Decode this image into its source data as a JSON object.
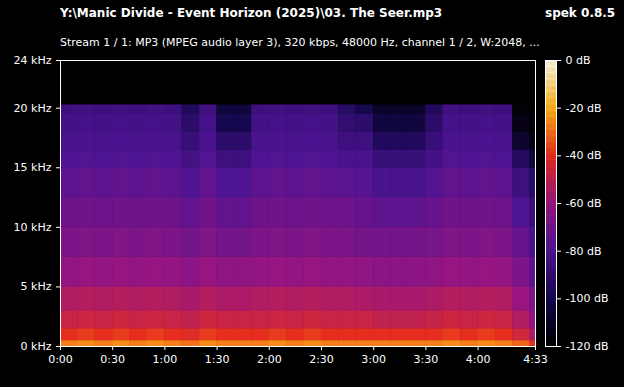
{
  "chart_data": {
    "type": "heatmap",
    "title": "Y:\\Manic Divide - Event Horizon (2025)\\03. The Seer.mp3",
    "subtitle": "Stream 1 / 1: MP3 (MPEG audio layer 3), 320 kbps, 48000 Hz, channel 1 / 2, W:2048, ...",
    "annotation": "spek 0.8.5",
    "xlim": [
      0,
      273
    ],
    "xticks": [
      {
        "value": 0,
        "label": "0:00"
      },
      {
        "value": 30,
        "label": "0:30"
      },
      {
        "value": 60,
        "label": "1:00"
      },
      {
        "value": 90,
        "label": "1:30"
      },
      {
        "value": 120,
        "label": "2:00"
      },
      {
        "value": 150,
        "label": "2:30"
      },
      {
        "value": 180,
        "label": "3:00"
      },
      {
        "value": 210,
        "label": "3:30"
      },
      {
        "value": 240,
        "label": "4:00"
      },
      {
        "value": 273,
        "label": "4:33"
      }
    ],
    "ylim": [
      0,
      24
    ],
    "yticks": [
      {
        "value": 0,
        "label": "0 kHz"
      },
      {
        "value": 5,
        "label": "5 kHz"
      },
      {
        "value": 10,
        "label": "10 kHz"
      },
      {
        "value": 15,
        "label": "15 kHz"
      },
      {
        "value": 20,
        "label": "20 kHz"
      },
      {
        "value": 24,
        "label": "24 kHz"
      }
    ],
    "time_bins": [
      0,
      10,
      20,
      30,
      40,
      50,
      60,
      70,
      80,
      90,
      100,
      110,
      120,
      130,
      140,
      150,
      160,
      170,
      180,
      190,
      200,
      210,
      220,
      230,
      240,
      250,
      260,
      270,
      273
    ],
    "freq_bins": [
      0,
      0.5,
      1.5,
      3,
      5,
      7.5,
      10,
      12.5,
      15,
      16.5,
      18,
      19.5,
      20.3,
      24
    ],
    "cells": [
      [
        -28,
        -40,
        -48,
        -54,
        -62,
        -68,
        -72,
        -76,
        -80,
        -82,
        -84,
        -86,
        -120
      ],
      [
        -26,
        -38,
        -47,
        -53,
        -61,
        -67,
        -71,
        -75,
        -79,
        -81,
        -83,
        -85,
        -120
      ],
      [
        -28,
        -40,
        -48,
        -54,
        -62,
        -68,
        -72,
        -76,
        -80,
        -82,
        -84,
        -86,
        -120
      ],
      [
        -26,
        -38,
        -47,
        -53,
        -61,
        -67,
        -71,
        -75,
        -79,
        -81,
        -83,
        -85,
        -120
      ],
      [
        -28,
        -40,
        -48,
        -54,
        -62,
        -68,
        -72,
        -76,
        -80,
        -82,
        -84,
        -86,
        -120
      ],
      [
        -26,
        -38,
        -47,
        -53,
        -61,
        -67,
        -71,
        -75,
        -79,
        -81,
        -83,
        -85,
        -120
      ],
      [
        -28,
        -40,
        -48,
        -54,
        -62,
        -68,
        -72,
        -76,
        -80,
        -82,
        -84,
        -86,
        -120
      ],
      [
        -30,
        -42,
        -50,
        -56,
        -64,
        -70,
        -75,
        -80,
        -84,
        -88,
        -92,
        -96,
        -120
      ],
      [
        -26,
        -38,
        -47,
        -53,
        -61,
        -67,
        -71,
        -75,
        -79,
        -81,
        -83,
        -85,
        -120
      ],
      [
        -28,
        -40,
        -48,
        -55,
        -63,
        -70,
        -75,
        -80,
        -86,
        -92,
        -100,
        -105,
        -120
      ],
      [
        -28,
        -40,
        -48,
        -55,
        -63,
        -70,
        -75,
        -80,
        -86,
        -92,
        -100,
        -105,
        -120
      ],
      [
        -28,
        -40,
        -48,
        -54,
        -62,
        -68,
        -72,
        -76,
        -80,
        -82,
        -84,
        -86,
        -120
      ],
      [
        -26,
        -38,
        -47,
        -53,
        -61,
        -67,
        -71,
        -75,
        -79,
        -81,
        -83,
        -85,
        -120
      ],
      [
        -28,
        -40,
        -48,
        -54,
        -62,
        -68,
        -72,
        -76,
        -80,
        -82,
        -84,
        -86,
        -120
      ],
      [
        -26,
        -38,
        -47,
        -53,
        -61,
        -67,
        -71,
        -75,
        -79,
        -81,
        -83,
        -85,
        -120
      ],
      [
        -28,
        -40,
        -48,
        -54,
        -62,
        -68,
        -72,
        -76,
        -80,
        -82,
        -84,
        -86,
        -120
      ],
      [
        -28,
        -40,
        -48,
        -54,
        -62,
        -68,
        -72,
        -77,
        -82,
        -86,
        -90,
        -94,
        -120
      ],
      [
        -28,
        -40,
        -48,
        -55,
        -63,
        -70,
        -74,
        -78,
        -82,
        -86,
        -92,
        -100,
        -120
      ],
      [
        -28,
        -40,
        -50,
        -56,
        -64,
        -70,
        -76,
        -82,
        -88,
        -96,
        -104,
        -110,
        -120
      ],
      [
        -28,
        -40,
        -50,
        -56,
        -64,
        -70,
        -76,
        -82,
        -88,
        -96,
        -104,
        -110,
        -120
      ],
      [
        -28,
        -40,
        -50,
        -56,
        -64,
        -70,
        -76,
        -82,
        -88,
        -96,
        -104,
        -110,
        -120
      ],
      [
        -28,
        -40,
        -49,
        -55,
        -63,
        -69,
        -74,
        -79,
        -84,
        -88,
        -92,
        -96,
        -120
      ],
      [
        -26,
        -38,
        -47,
        -53,
        -61,
        -67,
        -71,
        -75,
        -79,
        -81,
        -83,
        -85,
        -120
      ],
      [
        -28,
        -40,
        -48,
        -54,
        -62,
        -68,
        -72,
        -76,
        -80,
        -82,
        -84,
        -86,
        -120
      ],
      [
        -26,
        -38,
        -47,
        -53,
        -61,
        -67,
        -71,
        -75,
        -79,
        -81,
        -83,
        -85,
        -120
      ],
      [
        -28,
        -40,
        -48,
        -54,
        -62,
        -68,
        -72,
        -76,
        -80,
        -82,
        -84,
        -86,
        -120
      ],
      [
        -32,
        -46,
        -54,
        -60,
        -68,
        -74,
        -80,
        -86,
        -95,
        -108,
        -115,
        -118,
        -120
      ],
      [
        -40,
        -55,
        -62,
        -68,
        -76,
        -82,
        -88,
        -94,
        -105,
        -115,
        -118,
        -120,
        -120
      ]
    ],
    "colorbar_range": [
      -120,
      0
    ],
    "colorbar_ticks": [
      {
        "value": 0,
        "label": "0 dB"
      },
      {
        "value": -20,
        "label": "-20 dB"
      },
      {
        "value": -40,
        "label": "-40 dB"
      },
      {
        "value": -60,
        "label": "-60 dB"
      },
      {
        "value": -80,
        "label": "-80 dB"
      },
      {
        "value": -100,
        "label": "-100 dB"
      },
      {
        "value": -120,
        "label": "-120 dB"
      }
    ]
  }
}
